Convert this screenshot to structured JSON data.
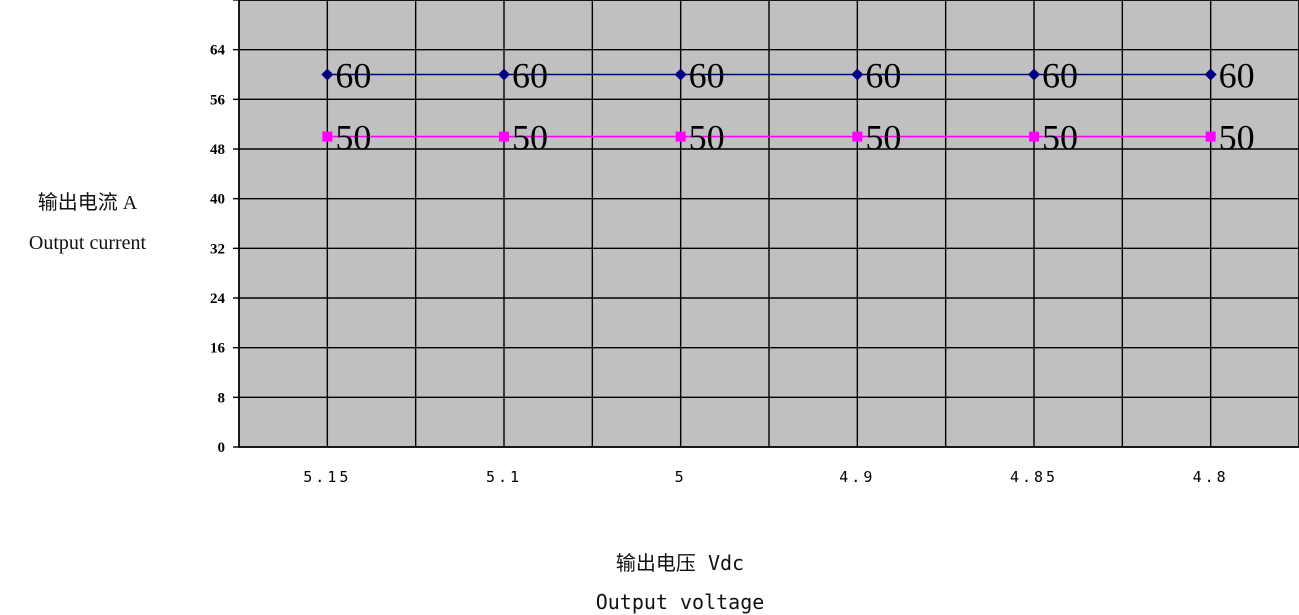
{
  "chart_data": {
    "type": "line",
    "categories": [
      "5.15",
      "5.1",
      "5",
      "4.9",
      "4.85",
      "4.8"
    ],
    "series": [
      {
        "values": [
          60,
          60,
          60,
          60,
          60,
          60
        ],
        "color": "#000080",
        "marker": "diamond"
      },
      {
        "values": [
          50,
          50,
          50,
          50,
          50,
          50
        ],
        "color": "#ff00ff",
        "marker": "square"
      }
    ],
    "y_ticks": [
      0,
      8,
      16,
      24,
      32,
      40,
      48,
      56,
      64
    ],
    "ylim": [
      0,
      72
    ],
    "ylabel_line1": "输出电流 A",
    "ylabel_line2": "Output current",
    "xlabel_line1": "输出电压 Vdc",
    "xlabel_line2": "Output voltage",
    "plot_background": "#c0c0c0",
    "grid": true
  }
}
